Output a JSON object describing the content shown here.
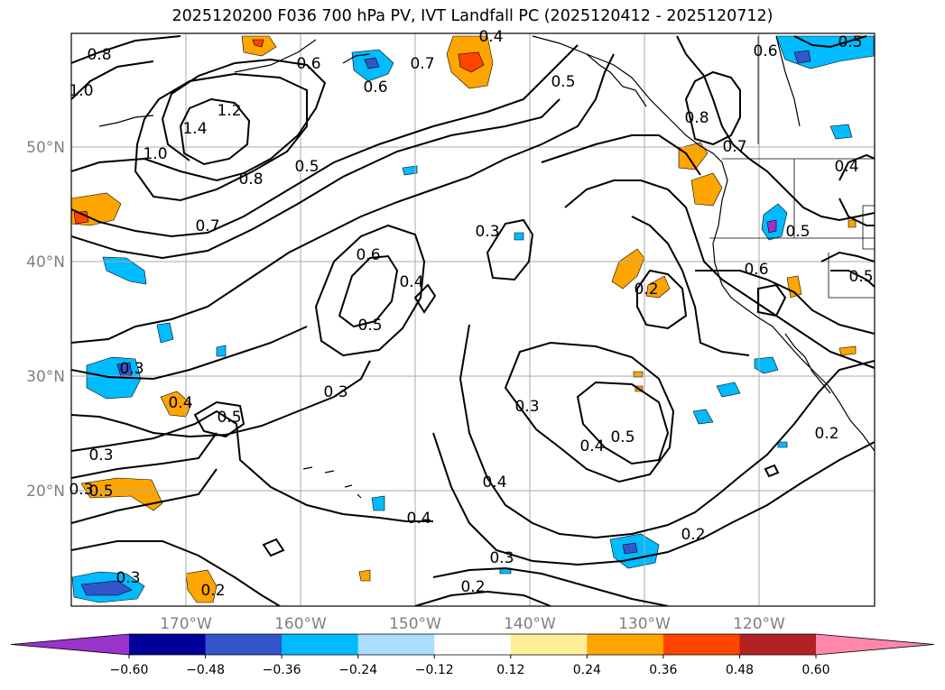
{
  "title": "2025120200 F036 700 hPa PV, IVT Landfall PC (2025120412 - 2025120712)",
  "map": {
    "lon_range": [
      -180,
      -110
    ],
    "lat_range": [
      10,
      60
    ],
    "lat_ticks": [
      {
        "value": 50,
        "label": "50°N"
      },
      {
        "value": 40,
        "label": "40°N"
      },
      {
        "value": 30,
        "label": "30°N"
      },
      {
        "value": 20,
        "label": "20°N"
      }
    ],
    "lon_ticks": [
      {
        "value": -170,
        "label": "170°W"
      },
      {
        "value": -160,
        "label": "160°W"
      },
      {
        "value": -150,
        "label": "150°W"
      },
      {
        "value": -140,
        "label": "140°W"
      },
      {
        "value": -130,
        "label": "130°W"
      },
      {
        "value": -120,
        "label": "120°W"
      }
    ],
    "grid": true,
    "pv_contour_labels": [
      "0.8",
      "1.0",
      "1.2",
      "1.4",
      "1.0",
      "0.8",
      "0.7",
      "0.6",
      "0.6",
      "0.7",
      "0.5",
      "0.4",
      "0.5",
      "0.6",
      "0.8",
      "0.7",
      "0.4",
      "0.6",
      "0.4",
      "0.5",
      "0.5",
      "0.6",
      "0.5",
      "0.3",
      "0.2",
      "0.4",
      "0.3",
      "0.5",
      "0.3",
      "0.3",
      "0.4",
      "0.5",
      "0.3",
      "0.4",
      "0.4",
      "0.3",
      "0.2",
      "0.2",
      "0.3",
      "0.2",
      "0.3",
      "0.5",
      "0.2",
      "0.5"
    ]
  },
  "colorbar": {
    "ticks": [
      "−0.60",
      "−0.48",
      "−0.36",
      "−0.24",
      "−0.12",
      "0.12",
      "0.24",
      "0.36",
      "0.48",
      "0.60"
    ],
    "colors": [
      "#9933cc",
      "#000099",
      "#3355cc",
      "#00bbff",
      "#aaddff",
      "#ffffff",
      "#ffee99",
      "#ffa500",
      "#ff4400",
      "#b22222",
      "#ff88aa"
    ]
  },
  "anomaly_colors": {
    "cyan": "#00bbff",
    "blue": "#3355cc",
    "orange": "#ffa500",
    "red": "#ff4400",
    "purple": "#9933cc"
  }
}
